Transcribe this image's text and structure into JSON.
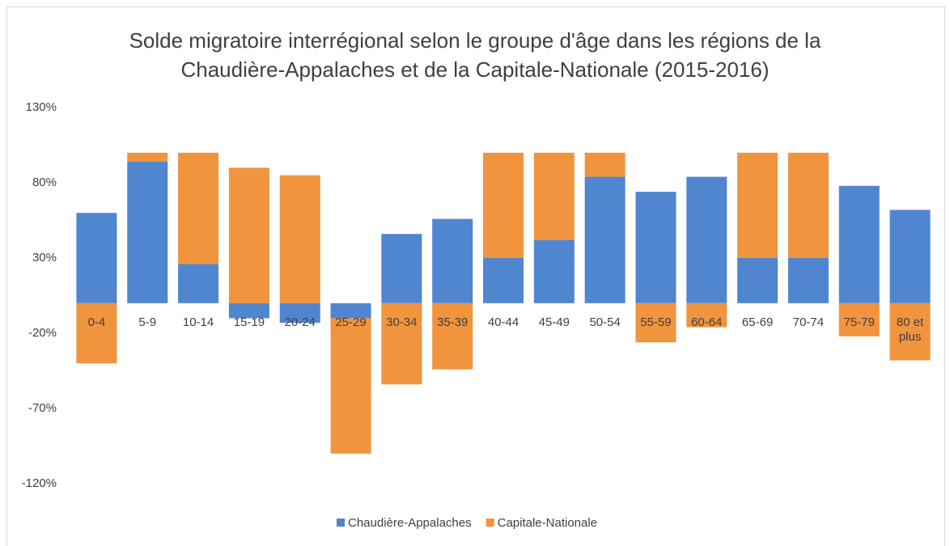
{
  "chart_data": {
    "type": "bar",
    "stacked": true,
    "title": "Solde migratoire interrégional selon le groupe d'âge dans les régions de la Chaudière-Appalaches et de la Capitale-Nationale (2015-2016)",
    "categories": [
      "0-4",
      "5-9",
      "10-14",
      "15-19",
      "20-24",
      "25-29",
      "30-34",
      "35-39",
      "40-44",
      "45-49",
      "50-54",
      "55-59",
      "60-64",
      "65-69",
      "70-74",
      "75-79",
      "80 et plus"
    ],
    "series": [
      {
        "name": "Chaudière-Appalaches",
        "color": "#4f86cf",
        "values": [
          60,
          94,
          26,
          -10,
          -13,
          -10,
          46,
          56,
          30,
          42,
          84,
          74,
          84,
          30,
          30,
          78,
          62
        ]
      },
      {
        "name": "Capitale-Nationale",
        "color": "#f0943e",
        "values": [
          -40,
          6,
          74,
          90,
          85,
          -90,
          -54,
          -44,
          70,
          58,
          16,
          -26,
          -16,
          70,
          70,
          -22,
          -38
        ]
      }
    ],
    "ylim": [
      -120,
      130
    ],
    "yticks": [
      {
        "value": -120,
        "label": "-120%"
      },
      {
        "value": -70,
        "label": "-70%"
      },
      {
        "value": -20,
        "label": "-20%"
      },
      {
        "value": 30,
        "label": "30%"
      },
      {
        "value": 80,
        "label": "80%"
      },
      {
        "value": 130,
        "label": "130%"
      }
    ],
    "grid": false,
    "legend": "bottom"
  }
}
